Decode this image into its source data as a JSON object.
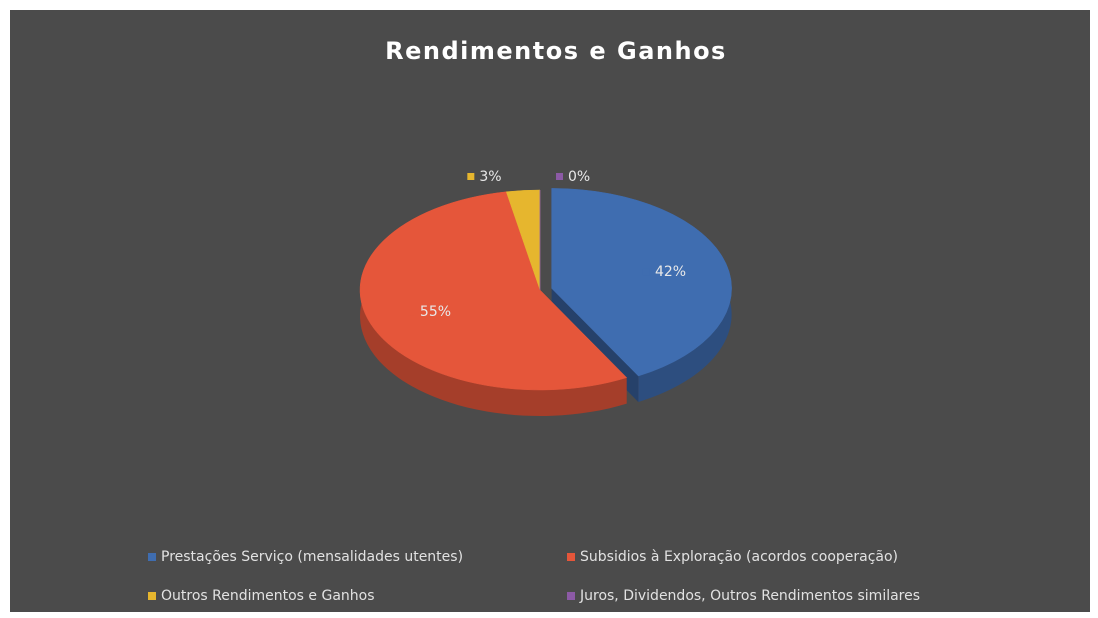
{
  "chart_data": {
    "type": "pie",
    "title": "Rendimentos e Ganhos",
    "categories": [
      "Prestações Serviço (mensalidades utentes)",
      "Subsidios à Exploração (acordos cooperação)",
      "Outros Rendimentos e Ganhos",
      "Juros, Dividendos, Outros Rendimentos similares"
    ],
    "values": [
      42,
      55,
      3,
      0
    ],
    "value_labels": [
      "42%",
      "55%",
      "3%",
      "0%"
    ],
    "colors": [
      "#3f6db0",
      "#e5563a",
      "#e6b62e",
      "#8c5aa6"
    ]
  }
}
